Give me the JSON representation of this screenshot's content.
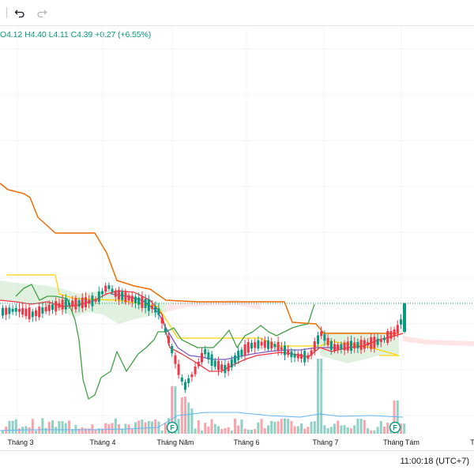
{
  "toolbar": {
    "undo_icon": "undo-icon",
    "redo_icon": "redo-icon"
  },
  "legend": {
    "open": "O4.12",
    "high": "H4.40",
    "low": "L4.11",
    "close": "C4.39",
    "change": "+0.27 (+6.55%)"
  },
  "status": {
    "time": "11:00:18 (UTC+7)"
  },
  "colors": {
    "up": "#089981",
    "down": "#f23645",
    "baseline": "#2962ff",
    "conversion": "#f23645",
    "base_line": "#7e57c2",
    "lagging": "#43a047",
    "lead1": "#ffd400",
    "lead2": "#ef6c00",
    "cloud_up": "#a5d6a7",
    "cloud_down": "#ffcdd2",
    "volume_ma": "#64b5f6"
  },
  "chart_data": {
    "type": "candlestick",
    "x_tick_labels": [
      "Tháng 3",
      "Tháng 4",
      "Tháng Năm",
      "Tháng 6",
      "Tháng 7",
      "Tháng Tám",
      "T"
    ],
    "indicators": [
      "Ichimoku Cloud",
      "Volume"
    ],
    "last_close": 4.39,
    "event_markers": [
      "F",
      "F"
    ]
  }
}
